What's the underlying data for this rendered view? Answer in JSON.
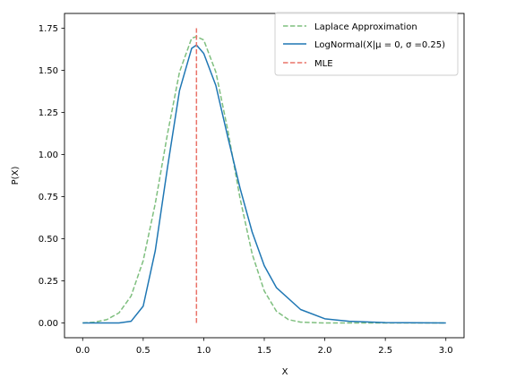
{
  "chart_data": {
    "type": "line",
    "xlabel": "X",
    "ylabel": "P(X)",
    "xlim": [
      -0.15,
      3.15
    ],
    "ylim": [
      -0.0875,
      1.8375
    ],
    "xticks": [
      "0.0",
      "0.5",
      "1.0",
      "1.5",
      "2.0",
      "2.5",
      "3.0"
    ],
    "xtick_values": [
      0,
      0.5,
      1.0,
      1.5,
      2.0,
      2.5,
      3.0
    ],
    "yticks": [
      "0.00",
      "0.25",
      "0.50",
      "0.75",
      "1.00",
      "1.25",
      "1.50",
      "1.75"
    ],
    "ytick_values": [
      0,
      0.25,
      0.5,
      0.75,
      1.0,
      1.25,
      1.5,
      1.75
    ],
    "grid": false,
    "legend_position": "top-right",
    "series": [
      {
        "name": "Laplace Approximation",
        "style": "dashed",
        "color": "#7fbf7f",
        "x": [
          0.0,
          0.1,
          0.2,
          0.3,
          0.4,
          0.5,
          0.6,
          0.7,
          0.8,
          0.9,
          0.94,
          1.0,
          1.1,
          1.2,
          1.3,
          1.4,
          1.5,
          1.6,
          1.7,
          1.8,
          2.0,
          2.5,
          3.0
        ],
        "y": [
          0.0,
          0.005,
          0.02,
          0.06,
          0.16,
          0.37,
          0.71,
          1.12,
          1.49,
          1.69,
          1.7,
          1.68,
          1.49,
          1.14,
          0.74,
          0.41,
          0.19,
          0.07,
          0.02,
          0.005,
          0.0,
          0.0,
          0.0
        ]
      },
      {
        "name": "LogNormal(X|μ = 0, σ =0.25)",
        "style": "solid",
        "color": "#1f77b4",
        "x": [
          0.0,
          0.3,
          0.4,
          0.5,
          0.6,
          0.7,
          0.8,
          0.9,
          0.94,
          1.0,
          1.1,
          1.2,
          1.3,
          1.4,
          1.5,
          1.6,
          1.8,
          2.0,
          2.2,
          2.5,
          3.0
        ],
        "y": [
          0.0,
          0.0,
          0.01,
          0.1,
          0.43,
          0.92,
          1.38,
          1.63,
          1.65,
          1.6,
          1.41,
          1.1,
          0.8,
          0.54,
          0.34,
          0.21,
          0.08,
          0.025,
          0.01,
          0.002,
          0.0
        ]
      },
      {
        "name": "MLE",
        "style": "dashed",
        "color": "#ea7369",
        "x": [
          0.94,
          0.94
        ],
        "y": [
          0.0,
          1.75
        ]
      }
    ]
  }
}
